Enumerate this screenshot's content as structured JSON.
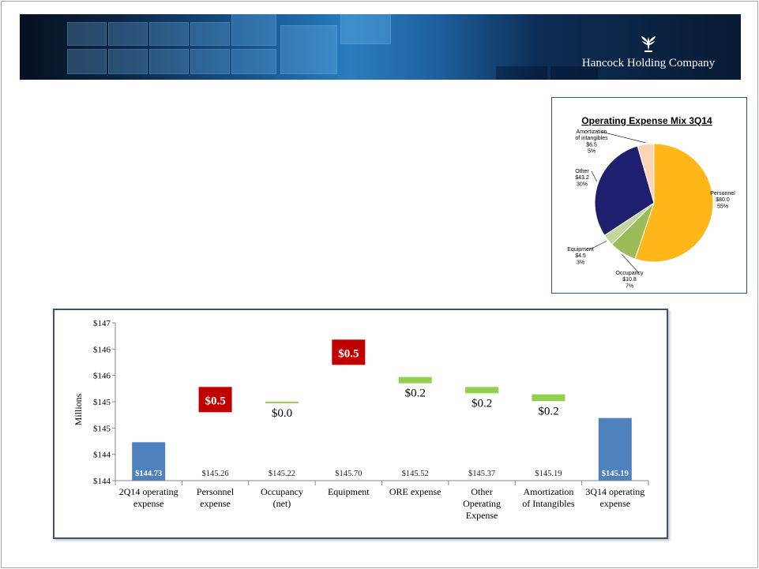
{
  "brand": {
    "logo_text": "Hancock Holding Company"
  },
  "colors": {
    "increase": "#c00000",
    "decrease": "#92d050",
    "total": "#4f81bd",
    "personnel": "#ffb619",
    "occupancy": "#9bbb59",
    "equipment": "#9bbb59",
    "other": "#1f1f6f",
    "amortization": "#fcd5b4"
  },
  "pie_chart": {
    "title": "Operating Expense Mix 3Q14",
    "slices": [
      {
        "lines": [
          "Personnel",
          "$80.0",
          "55%"
        ],
        "value": 80.0,
        "percent": 55,
        "color": "#ffb619"
      },
      {
        "lines": [
          "Occupancy",
          "$10.8",
          "7%"
        ],
        "value": 10.8,
        "percent": 7,
        "color": "#9bbb59"
      },
      {
        "lines": [
          "Equipment",
          "$4.5",
          "3%"
        ],
        "value": 4.5,
        "percent": 3,
        "color": "#c3d69b"
      },
      {
        "lines": [
          "Other",
          "$43.2",
          "30%"
        ],
        "value": 43.2,
        "percent": 30,
        "color": "#1f1f6f"
      },
      {
        "lines": [
          "Amortization",
          "of intangibles",
          "$6.5",
          "5%"
        ],
        "value": 6.5,
        "percent": 5,
        "color": "#fcd5b4"
      }
    ]
  },
  "chart_data": {
    "type": "bar",
    "ylabel": "Millions",
    "ylim": [
      144,
      147
    ],
    "ytick_values": [
      144,
      144.5,
      145,
      145.5,
      146,
      146.5,
      147
    ],
    "ytick_labels": [
      "$144",
      "$144",
      "$145",
      "$145",
      "$146",
      "$146",
      "$147"
    ],
    "categories": [
      [
        "2Q14 operating",
        "expense"
      ],
      [
        "Personnel",
        "expense"
      ],
      [
        "Occupancy",
        "(net)"
      ],
      [
        "Equipment"
      ],
      [
        "ORE expense"
      ],
      [
        "Other",
        "Operating",
        "Expense"
      ],
      [
        "Amortization",
        "of Intangibles"
      ],
      [
        "3Q14 operating",
        "expense"
      ]
    ],
    "steps": [
      {
        "kind": "total",
        "value": 144.73,
        "label": "$144.73"
      },
      {
        "kind": "increase",
        "from": 145.3,
        "to": 145.78,
        "label": "$0.5",
        "running_total": "$145.26"
      },
      {
        "kind": "decrease",
        "from": 145.5,
        "to": 145.47,
        "label": "$0.0",
        "running_total": "$145.22"
      },
      {
        "kind": "increase",
        "from": 146.2,
        "to": 146.68,
        "label": "$0.5",
        "running_total": "$145.70"
      },
      {
        "kind": "decrease",
        "from": 145.97,
        "to": 145.85,
        "label": "$0.2",
        "running_total": "$145.52"
      },
      {
        "kind": "decrease",
        "from": 145.78,
        "to": 145.66,
        "label": "$0.2",
        "running_total": "$145.37"
      },
      {
        "kind": "decrease",
        "from": 145.64,
        "to": 145.51,
        "label": "$0.2",
        "running_total": "$145.19"
      },
      {
        "kind": "total",
        "value": 145.19,
        "label": "$145.19"
      }
    ]
  }
}
